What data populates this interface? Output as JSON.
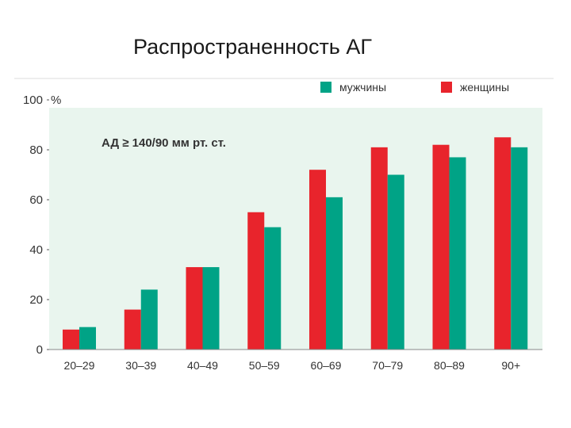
{
  "slide_title": "Распространенность АГ",
  "chart_data": {
    "type": "bar",
    "title": "Распространенность АГ",
    "annotation": "АД ≥ 140/90 мм рт. ст.",
    "ylabel": "%",
    "ylim": [
      0,
      100
    ],
    "yticks": [
      "0",
      "20",
      "40",
      "60",
      "80",
      "100"
    ],
    "categories": [
      "20–29",
      "30–39",
      "40–49",
      "50–59",
      "60–69",
      "70–79",
      "80–89",
      "90+"
    ],
    "series": [
      {
        "name": "женщины",
        "color": "#e8242c",
        "values": [
          8,
          16,
          33,
          55,
          72,
          81,
          82,
          85
        ]
      },
      {
        "name": "мужчины",
        "color": "#00a386",
        "values": [
          9,
          24,
          33,
          49,
          61,
          70,
          77,
          81
        ]
      }
    ],
    "legend_order": [
      "мужчины",
      "женщины"
    ],
    "legend_position": "top-right",
    "plot_background": "#e9f5ee",
    "grid": false
  }
}
